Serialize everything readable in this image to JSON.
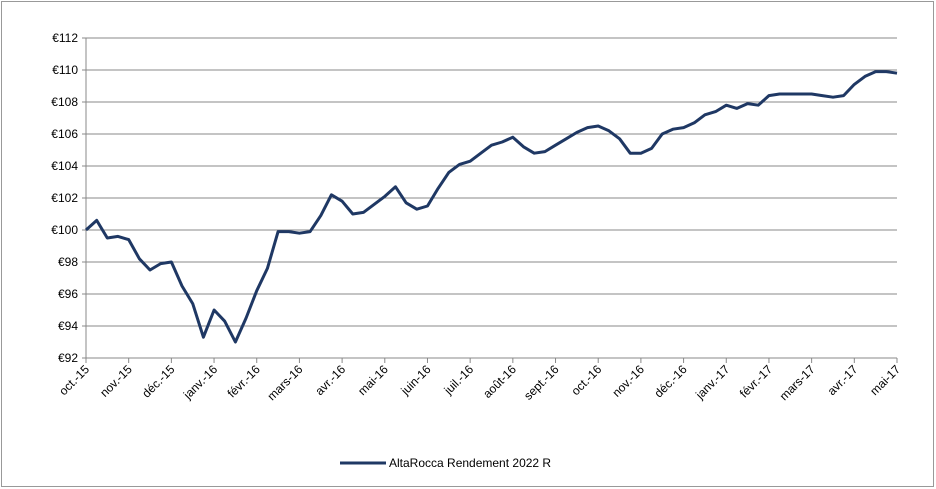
{
  "chart_data": {
    "type": "line",
    "categories": [
      "oct.-15",
      null,
      null,
      null,
      "nov.-15",
      null,
      null,
      null,
      "déc.-15",
      null,
      null,
      null,
      "janv.-16",
      null,
      null,
      null,
      "févr.-16",
      null,
      null,
      null,
      "mars-16",
      null,
      null,
      null,
      "avr.-16",
      null,
      null,
      null,
      "mai-16",
      null,
      null,
      null,
      "juin-16",
      null,
      null,
      null,
      "juil.-16",
      null,
      null,
      null,
      "août-16",
      null,
      null,
      null,
      "sept.-16",
      null,
      null,
      null,
      "oct.-16",
      null,
      null,
      null,
      "nov.-16",
      null,
      null,
      null,
      "déc.-16",
      null,
      null,
      null,
      "janv.-17",
      null,
      null,
      null,
      "févr.-17",
      null,
      null,
      null,
      "mars-17",
      null,
      null,
      null,
      "avr.-17",
      null,
      null,
      null,
      "mai-17"
    ],
    "series": [
      {
        "name": "AltaRocca Rendement 2022 R",
        "color": "#1f3864",
        "values": [
          100,
          100.6,
          99.5,
          99.6,
          99.4,
          98.2,
          97.5,
          97.9,
          98.0,
          96.5,
          95.4,
          93.3,
          95.0,
          94.3,
          93.0,
          94.5,
          96.2,
          97.6,
          99.9,
          99.9,
          99.8,
          99.9,
          100.9,
          102.2,
          101.8,
          101.0,
          101.1,
          101.6,
          102.1,
          102.7,
          101.7,
          101.3,
          101.5,
          102.6,
          103.6,
          104.1,
          104.3,
          104.8,
          105.3,
          105.5,
          105.8,
          105.2,
          104.8,
          104.9,
          105.3,
          105.7,
          106.1,
          106.4,
          106.5,
          106.2,
          105.7,
          104.8,
          104.8,
          105.1,
          106.0,
          106.3,
          106.4,
          106.7,
          107.2,
          107.4,
          107.8,
          107.6,
          107.9,
          107.8,
          108.4,
          108.5,
          108.5,
          108.5,
          108.5,
          108.4,
          108.3,
          108.4,
          109.1,
          109.6,
          109.9,
          109.9,
          109.8
        ]
      }
    ],
    "ylim": [
      92,
      112
    ],
    "yticks": [
      {
        "value": 92,
        "label": "€92"
      },
      {
        "value": 94,
        "label": "€94"
      },
      {
        "value": 96,
        "label": "€96"
      },
      {
        "value": 98,
        "label": "€98"
      },
      {
        "value": 100,
        "label": "€100"
      },
      {
        "value": 102,
        "label": "€102"
      },
      {
        "value": 104,
        "label": "€104"
      },
      {
        "value": 106,
        "label": "€106"
      },
      {
        "value": 108,
        "label": "€108"
      },
      {
        "value": 110,
        "label": "€110"
      },
      {
        "value": 112,
        "label": "€112"
      }
    ],
    "grid": true,
    "legend": "bottom"
  }
}
